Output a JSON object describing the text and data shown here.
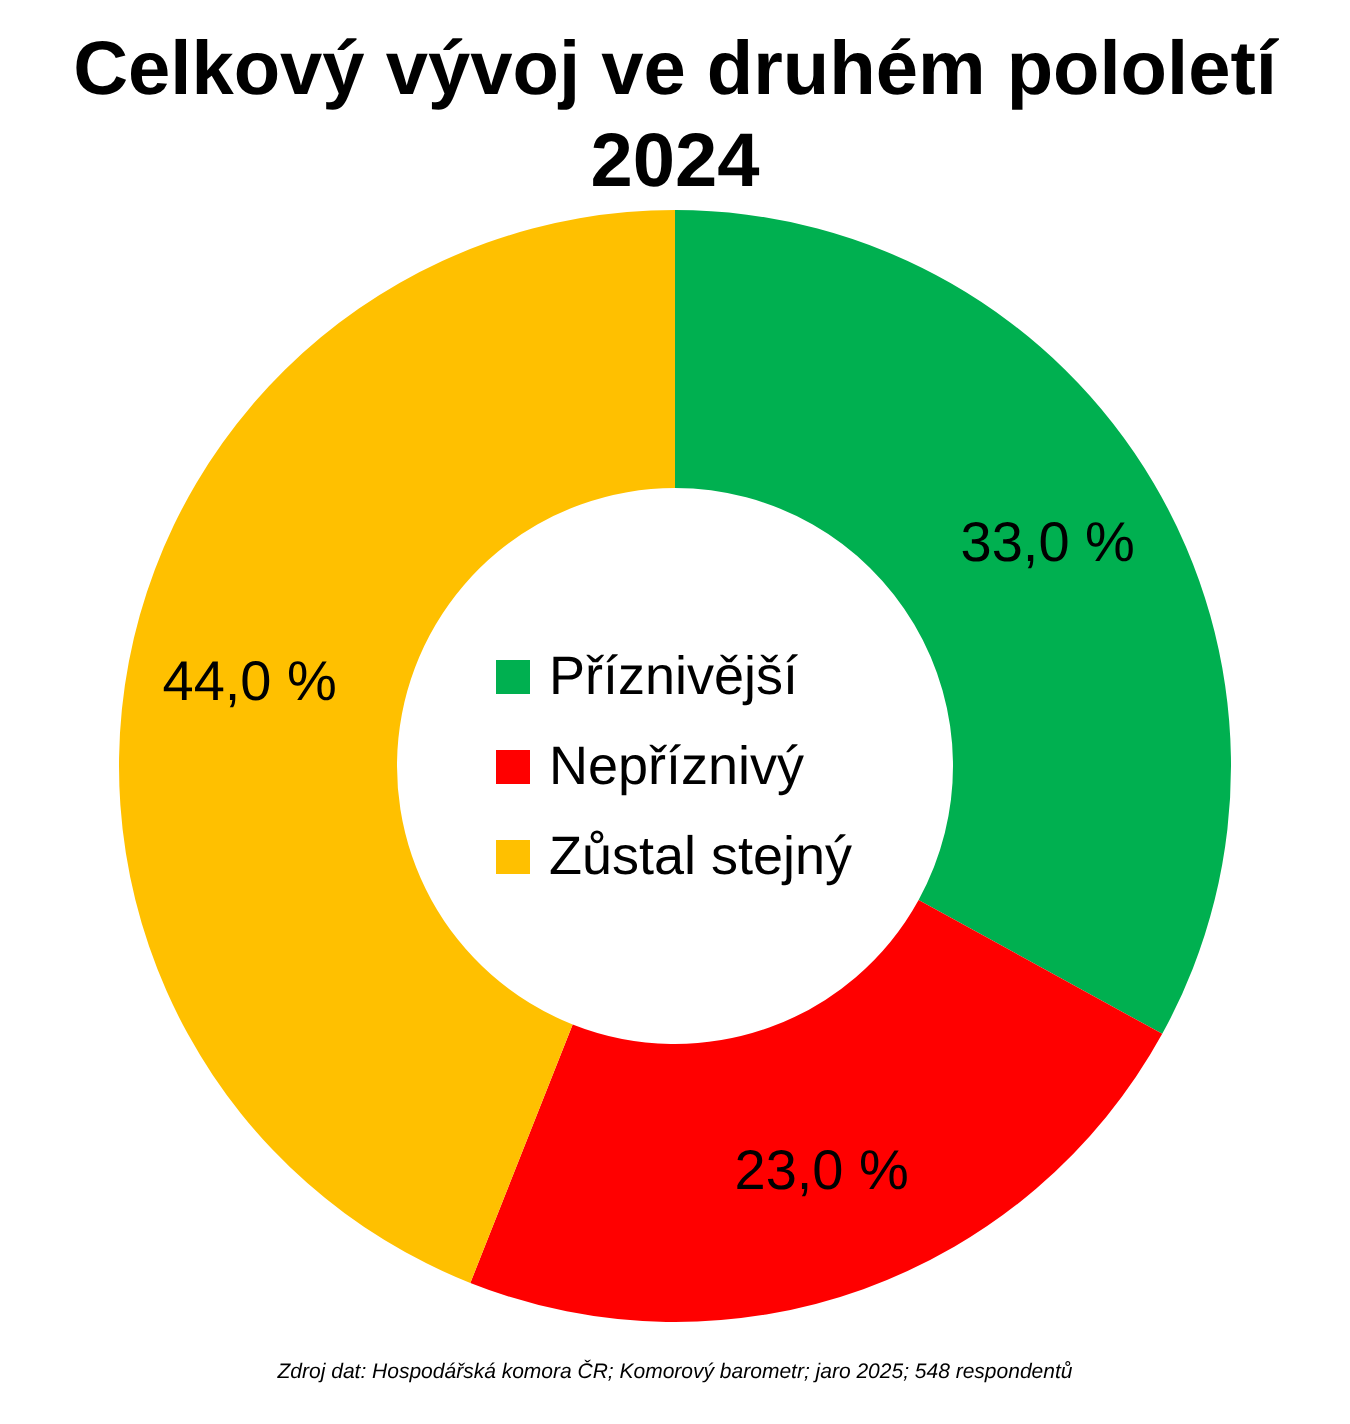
{
  "chart_data": {
    "type": "donut",
    "title": "Celkový vývoj ve druhém pololetí 2024",
    "categories": [
      "Příznivější",
      "Nepříznivý",
      "Zůstal stejný"
    ],
    "values": [
      33,
      23,
      44
    ],
    "colors": [
      "#00b050",
      "#ff0000",
      "#ffc000"
    ],
    "value_labels": [
      "33,0 %",
      "23,0 %",
      "44,0 %"
    ],
    "legend": "center",
    "annotations": [
      "Zdroj dat: Hospodářská komora ČR; Komorový barometr; jaro 2025; 548 respondentů"
    ]
  }
}
